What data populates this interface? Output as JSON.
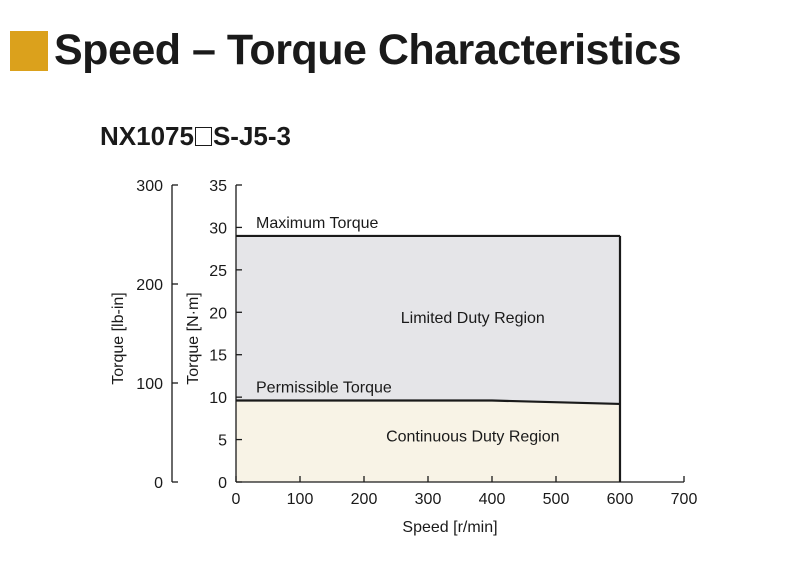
{
  "header": {
    "title": "Speed – Torque Characteristics",
    "accent_color": "#dba11c"
  },
  "model": {
    "prefix": "NX1075",
    "suffix": "S-J5-3"
  },
  "chart_data": {
    "type": "area",
    "xlabel": "Speed [r/min]",
    "ylabel": "Torque [N·m]",
    "ylabel_secondary": "Torque [lb-in]",
    "xlim": [
      0,
      700
    ],
    "ylim": [
      0,
      35
    ],
    "ylim_secondary": [
      0,
      300
    ],
    "x_ticks": [
      0,
      100,
      200,
      300,
      400,
      500,
      600,
      700
    ],
    "y_ticks": [
      0,
      5,
      10,
      15,
      20,
      25,
      30,
      35
    ],
    "y_ticks_secondary": [
      0,
      100,
      200,
      300
    ],
    "grid": false,
    "series": [
      {
        "name": "Maximum Torque",
        "x": [
          0,
          600
        ],
        "y": [
          29,
          29
        ]
      },
      {
        "name": "Permissible Torque",
        "x": [
          0,
          400,
          600
        ],
        "y": [
          9.6,
          9.6,
          9.2
        ]
      }
    ],
    "regions": [
      {
        "label": "Limited Duty Region",
        "color": "#e5e5e8",
        "label_x": 370,
        "label_y": 19
      },
      {
        "label": "Continuous Duty Region",
        "color": "#f8f3e6",
        "label_x": 370,
        "label_y": 5
      }
    ],
    "cutoff_speed": 600
  }
}
